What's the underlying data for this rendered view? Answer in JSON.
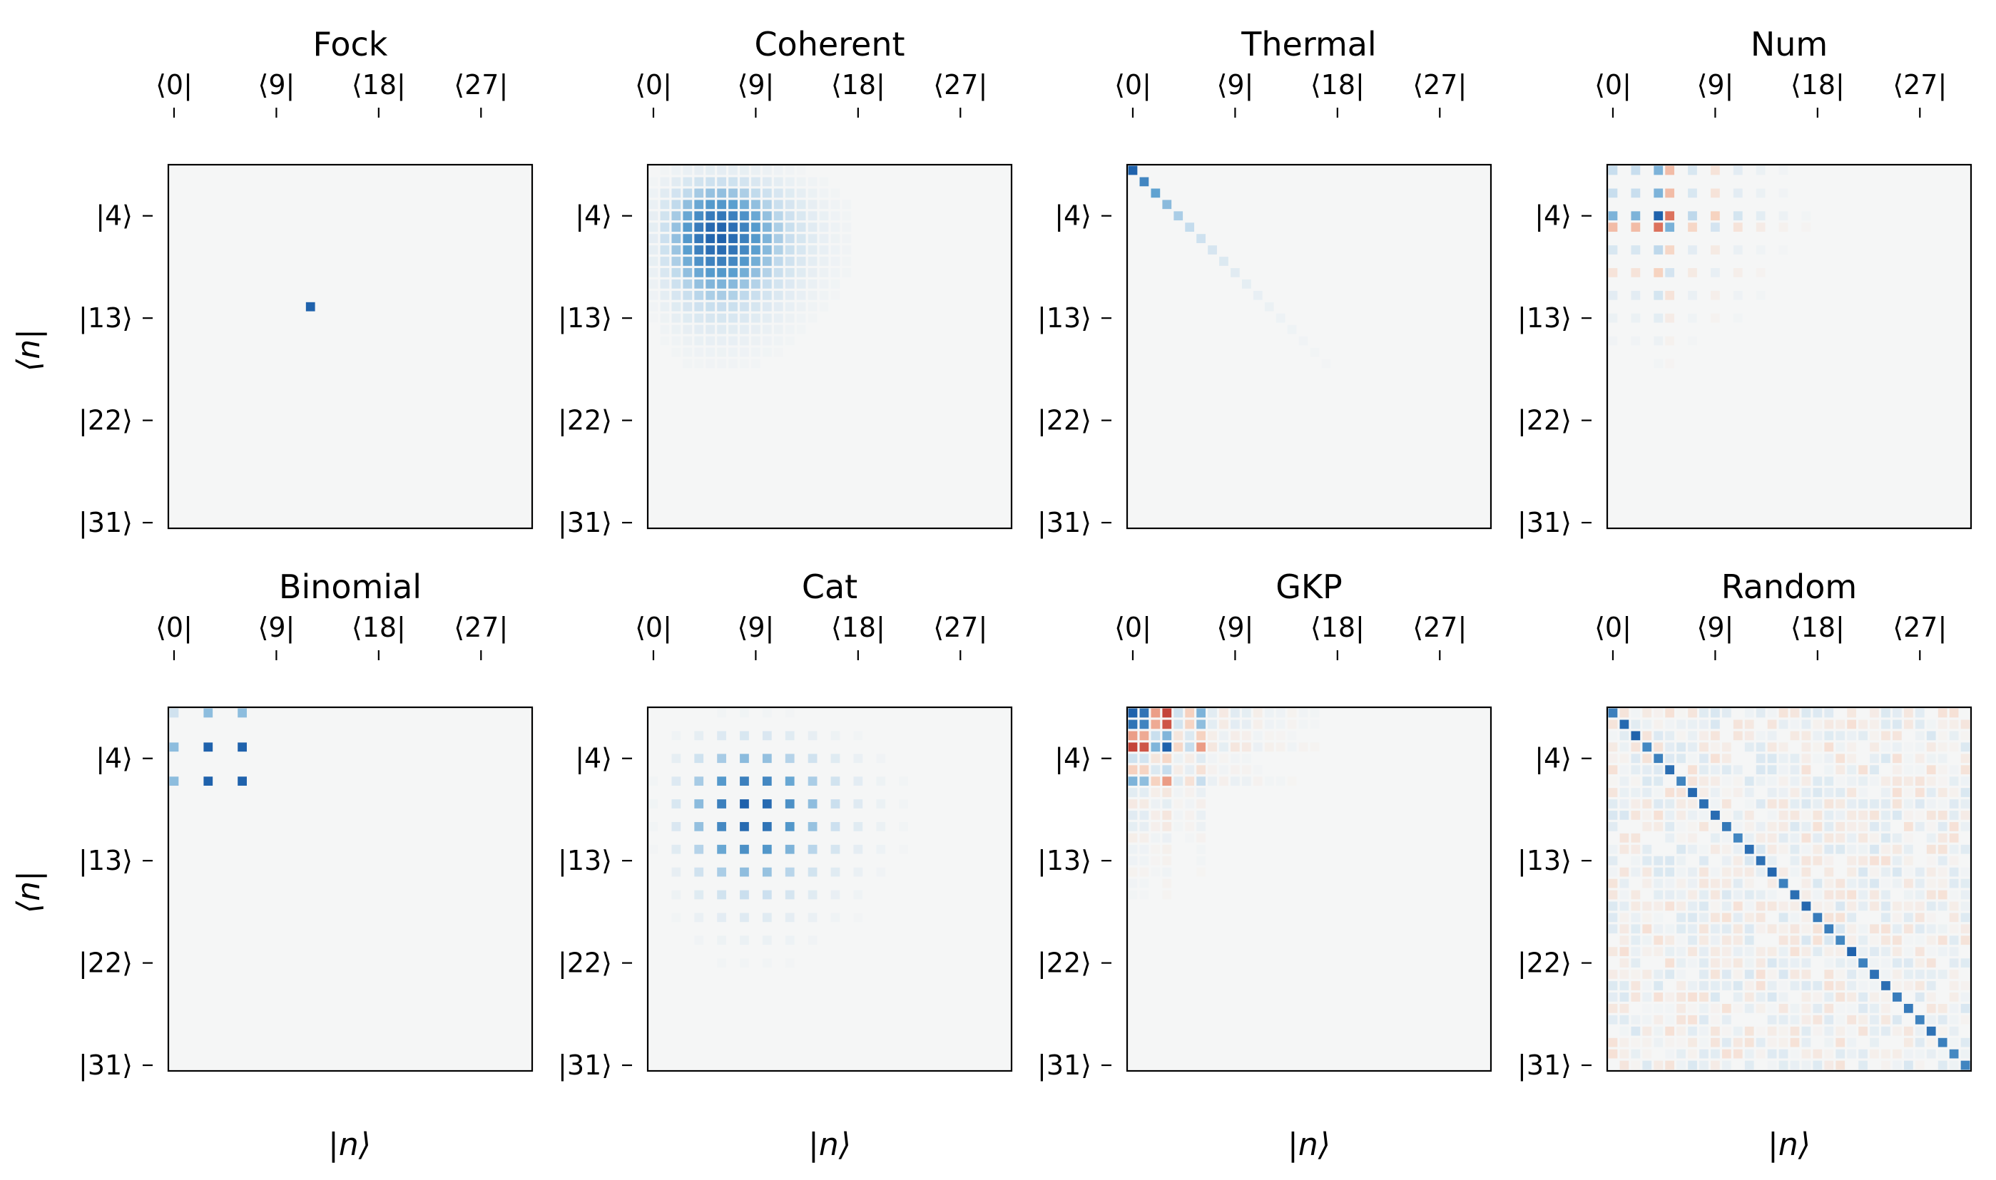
{
  "figure": {
    "ylabel": "⟨n|",
    "xlabel": "|n⟩"
  },
  "chart_data": [
    {
      "type": "heatmap",
      "title": "Fock",
      "state": "fock",
      "x_ticks": [
        "⟨0|",
        "⟨9|",
        "⟨18|",
        "⟨27|"
      ],
      "y_ticks": [
        "|4⟩",
        "|13⟩",
        "|22⟩",
        "|31⟩"
      ],
      "x_tick_values": [
        0,
        9,
        18,
        27
      ],
      "y_tick_values": [
        4,
        13,
        22,
        31
      ],
      "dim": 32,
      "nonzero": [
        [
          12,
          12,
          1.0
        ]
      ]
    },
    {
      "type": "heatmap",
      "title": "Coherent",
      "state": "coherent",
      "x_ticks": [
        "⟨0|",
        "⟨9|",
        "⟨18|",
        "⟨27|"
      ],
      "y_ticks": [
        "|4⟩",
        "|13⟩",
        "|22⟩",
        "|31⟩"
      ],
      "x_tick_values": [
        0,
        9,
        18,
        27
      ],
      "y_tick_values": [
        4,
        13,
        22,
        31
      ],
      "dim": 32,
      "alpha": 2.5
    },
    {
      "type": "heatmap",
      "title": "Thermal",
      "state": "thermal",
      "x_ticks": [
        "⟨0|",
        "⟨9|",
        "⟨18|",
        "⟨27|"
      ],
      "y_ticks": [
        "|4⟩",
        "|13⟩",
        "|22⟩",
        "|31⟩"
      ],
      "x_tick_values": [
        0,
        9,
        18,
        27
      ],
      "y_tick_values": [
        4,
        13,
        22,
        31
      ],
      "dim": 32,
      "nbar": 4
    },
    {
      "type": "heatmap",
      "title": "Num",
      "state": "num",
      "x_ticks": [
        "⟨0|",
        "⟨9|",
        "⟨18|",
        "⟨27|"
      ],
      "y_ticks": [
        "|4⟩",
        "|13⟩",
        "|22⟩",
        "|31⟩"
      ],
      "x_tick_values": [
        0,
        9,
        18,
        27
      ],
      "y_tick_values": [
        4,
        13,
        22,
        31
      ],
      "dim": 32
    },
    {
      "type": "heatmap",
      "title": "Binomial",
      "state": "binomial",
      "x_ticks": [
        "⟨0|",
        "⟨9|",
        "⟨18|",
        "⟨27|"
      ],
      "y_ticks": [
        "|4⟩",
        "|13⟩",
        "|22⟩",
        "|31⟩"
      ],
      "x_tick_values": [
        0,
        9,
        18,
        27
      ],
      "y_tick_values": [
        4,
        13,
        22,
        31
      ],
      "dim": 32,
      "support": [
        0,
        3,
        6
      ],
      "weights": [
        0.4,
        0.8,
        0.8
      ]
    },
    {
      "type": "heatmap",
      "title": "Cat",
      "state": "cat",
      "x_ticks": [
        "⟨0|",
        "⟨9|",
        "⟨18|",
        "⟨27|"
      ],
      "y_ticks": [
        "|4⟩",
        "|13⟩",
        "|22⟩",
        "|31⟩"
      ],
      "x_tick_values": [
        0,
        9,
        18,
        27
      ],
      "y_tick_values": [
        4,
        13,
        22,
        31
      ],
      "dim": 32,
      "alpha": 3.0
    },
    {
      "type": "heatmap",
      "title": "GKP",
      "state": "gkp",
      "x_ticks": [
        "⟨0|",
        "⟨9|",
        "⟨18|",
        "⟨27|"
      ],
      "y_ticks": [
        "|4⟩",
        "|13⟩",
        "|22⟩",
        "|31⟩"
      ],
      "x_tick_values": [
        0,
        9,
        18,
        27
      ],
      "y_tick_values": [
        4,
        13,
        22,
        31
      ],
      "dim": 32
    },
    {
      "type": "heatmap",
      "title": "Random",
      "state": "random",
      "x_ticks": [
        "⟨0|",
        "⟨9|",
        "⟨18|",
        "⟨27|"
      ],
      "y_ticks": [
        "|4⟩",
        "|13⟩",
        "|22⟩",
        "|31⟩"
      ],
      "x_tick_values": [
        0,
        9,
        18,
        27
      ],
      "y_tick_values": [
        4,
        13,
        22,
        31
      ],
      "dim": 32
    }
  ],
  "colormap": {
    "name": "RdBu",
    "center": "#f5f6f6",
    "positive_strong": "#1f62ac",
    "positive_mid": "#5a9fcf",
    "positive_light": "#c4dced",
    "negative_strong": "#c4443a",
    "negative_mid": "#e5826a",
    "negative_light": "#f6cfbb"
  }
}
